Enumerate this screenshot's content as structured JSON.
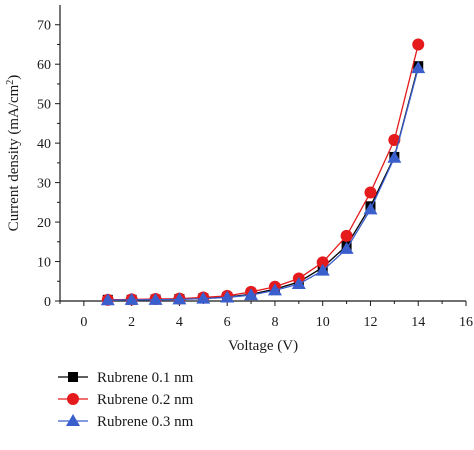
{
  "chart_data": {
    "type": "line",
    "xlabel": "Voltage (V)",
    "ylabel": "Current density (mA/cm",
    "ylabel_sup": "2",
    "ylabel_end": ")",
    "xlim": [
      -1,
      16
    ],
    "ylim": [
      0,
      75
    ],
    "x_ticks": [
      0,
      2,
      4,
      6,
      8,
      10,
      12,
      14,
      16
    ],
    "y_ticks": [
      0,
      10,
      20,
      30,
      40,
      50,
      60,
      70
    ],
    "x": [
      1,
      2,
      3,
      4,
      5,
      6,
      7,
      8,
      9,
      10,
      11,
      12,
      13,
      14
    ],
    "legend_position": "below-left",
    "series": [
      {
        "name": "Rubrene 0.1 nm",
        "marker": "square",
        "color": "#000000",
        "values": [
          0.3,
          0.3,
          0.4,
          0.5,
          0.7,
          1.0,
          1.7,
          3.0,
          4.8,
          8.5,
          14.0,
          24.0,
          36.5,
          59.5
        ]
      },
      {
        "name": "Rubrene 0.2 nm",
        "marker": "circle",
        "color": "#e41a1c",
        "values": [
          0.3,
          0.4,
          0.5,
          0.6,
          0.9,
          1.3,
          2.3,
          3.6,
          5.7,
          9.8,
          16.5,
          27.5,
          40.8,
          65.0
        ]
      },
      {
        "name": "Rubrene 0.3 nm",
        "marker": "triangle",
        "color": "#3a5fcd",
        "values": [
          0.2,
          0.3,
          0.3,
          0.4,
          0.6,
          0.9,
          1.5,
          2.7,
          4.3,
          7.7,
          13.2,
          23.2,
          36.3,
          59.0
        ]
      }
    ]
  }
}
